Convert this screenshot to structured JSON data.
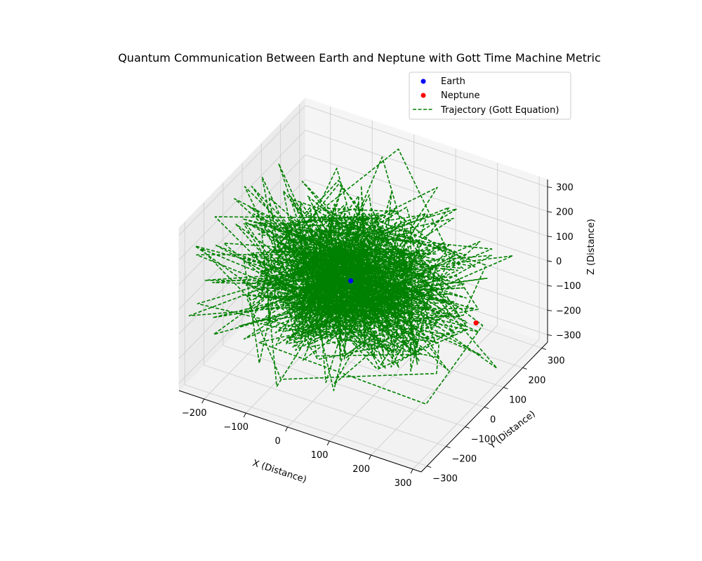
{
  "chart_data": {
    "type": "scatter",
    "title": "Quantum Communication Between Earth and Neptune with Gott Time Machine Metric",
    "xlabel": "X (Distance)",
    "ylabel": "Y (Distance)",
    "zlabel": "Z (Distance)",
    "xlim": [
      -260,
      320
    ],
    "ylim": [
      -330,
      330
    ],
    "zlim": [
      -330,
      330
    ],
    "x_ticks": [
      -200,
      -100,
      0,
      100,
      200,
      300
    ],
    "y_ticks": [
      -300,
      -200,
      -100,
      0,
      100,
      200,
      300
    ],
    "z_ticks": [
      -300,
      -200,
      -100,
      0,
      100,
      200,
      300
    ],
    "grid": true,
    "legend_position": "top-right",
    "series": [
      {
        "name": "Earth",
        "kind": "point",
        "color": "#0000ff",
        "x": [
          0
        ],
        "y": [
          0
        ],
        "z": [
          0
        ]
      },
      {
        "name": "Neptune",
        "kind": "point",
        "color": "#ff0000",
        "x": [
          300
        ],
        "y": [
          0
        ],
        "z": [
          0
        ]
      },
      {
        "name": "Trajectory (Gott Equation)",
        "kind": "line",
        "style": "dashed",
        "color": "#008000",
        "points": 900,
        "spread": 120
      }
    ]
  }
}
